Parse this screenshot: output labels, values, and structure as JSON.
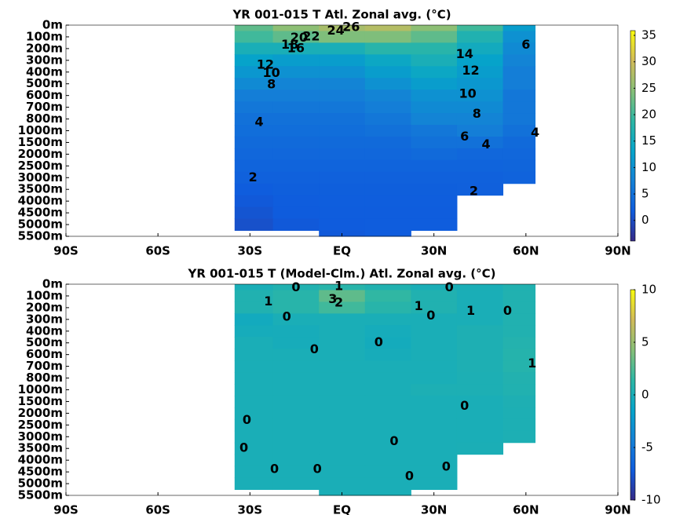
{
  "chart_data": [
    {
      "type": "contour",
      "title": "YR 001-015 T Atl. Zonal avg. (°C)",
      "xlim": [
        -90,
        90
      ],
      "xticks": [
        {
          "value": -90,
          "label": "90S"
        },
        {
          "value": -60,
          "label": "60S"
        },
        {
          "value": -30,
          "label": "30S"
        },
        {
          "value": 0,
          "label": "EQ"
        },
        {
          "value": 30,
          "label": "30N"
        },
        {
          "value": 60,
          "label": "60N"
        },
        {
          "value": 90,
          "label": "90N"
        }
      ],
      "yticks": [
        {
          "value": 0,
          "label": "0m"
        },
        {
          "value": 100,
          "label": "100m"
        },
        {
          "value": 200,
          "label": "200m"
        },
        {
          "value": 300,
          "label": "300m"
        },
        {
          "value": 400,
          "label": "400m"
        },
        {
          "value": 500,
          "label": "500m"
        },
        {
          "value": 600,
          "label": "600m"
        },
        {
          "value": 700,
          "label": "700m"
        },
        {
          "value": 800,
          "label": "800m"
        },
        {
          "value": 1000,
          "label": "1000m"
        },
        {
          "value": 1500,
          "label": "1500m"
        },
        {
          "value": 2000,
          "label": "2000m"
        },
        {
          "value": 2500,
          "label": "2500m"
        },
        {
          "value": 3000,
          "label": "3000m"
        },
        {
          "value": 3500,
          "label": "3500m"
        },
        {
          "value": 4000,
          "label": "4000m"
        },
        {
          "value": 4500,
          "label": "4500m"
        },
        {
          "value": 5000,
          "label": "5000m"
        },
        {
          "value": 5500,
          "label": "5500m"
        }
      ],
      "x": [
        -30,
        -15,
        0,
        15,
        30,
        45,
        60
      ],
      "field": [
        [
          22,
          25,
          27,
          28,
          25,
          20,
          12
        ],
        [
          20,
          22,
          24,
          24,
          22,
          17,
          10
        ],
        [
          16,
          16,
          16,
          18,
          18,
          15,
          9
        ],
        [
          13,
          12,
          12,
          14,
          16,
          13,
          8
        ],
        [
          11,
          10,
          10,
          12,
          14,
          12,
          7
        ],
        [
          9,
          8,
          8,
          10,
          12,
          11,
          7
        ],
        [
          7,
          7,
          7,
          8,
          10,
          10,
          6
        ],
        [
          6,
          6,
          6,
          7,
          9,
          9,
          6
        ],
        [
          5,
          5,
          5,
          6,
          8,
          8,
          6
        ],
        [
          4.5,
          4.5,
          4.5,
          5,
          6,
          7,
          5
        ],
        [
          4,
          4,
          4,
          4,
          5,
          5,
          4
        ],
        [
          3.5,
          3.5,
          3.5,
          3.5,
          4,
          3.5,
          3.5
        ],
        [
          3,
          3,
          3,
          3,
          3,
          3,
          3.2
        ],
        [
          2.5,
          2.5,
          2.5,
          2.5,
          2.5,
          2.5,
          2.8
        ],
        [
          2,
          2.2,
          2.3,
          2.3,
          2.3,
          2.4,
          null
        ],
        [
          1.5,
          2,
          2.1,
          2.1,
          2.1,
          null,
          null
        ],
        [
          1,
          1.8,
          2,
          2,
          2,
          null,
          null
        ],
        [
          0.5,
          1.5,
          1.8,
          1.9,
          1.9,
          null,
          null
        ],
        [
          null,
          null,
          1.5,
          1.8,
          null,
          null,
          null
        ]
      ],
      "clim": [
        -3.9,
        35.9
      ],
      "cticks": [
        0,
        5,
        10,
        15,
        20,
        25,
        30,
        35
      ],
      "colormap": [
        "#352a87",
        "#0f5cdd",
        "#1481d6",
        "#06a4ca",
        "#2eb7a4",
        "#87bf77",
        "#d1bb59",
        "#f9fb0e"
      ],
      "contour_labels": [
        {
          "value": 26,
          "lat": 3,
          "depth": 20
        },
        {
          "value": 24,
          "lat": -2,
          "depth": 50
        },
        {
          "value": 22,
          "lat": -10,
          "depth": 100
        },
        {
          "value": 20,
          "lat": -14,
          "depth": 110
        },
        {
          "value": 18,
          "lat": -17,
          "depth": 170
        },
        {
          "value": 16,
          "lat": -15,
          "depth": 200
        },
        {
          "value": 14,
          "lat": 40,
          "depth": 250
        },
        {
          "value": 12,
          "lat": -25,
          "depth": 340
        },
        {
          "value": 10,
          "lat": -23,
          "depth": 410
        },
        {
          "value": 8,
          "lat": -23,
          "depth": 510
        },
        {
          "value": 12,
          "lat": 42,
          "depth": 390
        },
        {
          "value": 10,
          "lat": 41,
          "depth": 590
        },
        {
          "value": 8,
          "lat": 44,
          "depth": 760
        },
        {
          "value": 6,
          "lat": 40,
          "depth": 1270
        },
        {
          "value": 4,
          "lat": -27,
          "depth": 860
        },
        {
          "value": 4,
          "lat": 47,
          "depth": 1600
        },
        {
          "value": 6,
          "lat": 60,
          "depth": 170
        },
        {
          "value": 4,
          "lat": 63,
          "depth": 1100
        },
        {
          "value": 2,
          "lat": -29,
          "depth": 3000
        },
        {
          "value": 2,
          "lat": 43,
          "depth": 3600
        }
      ]
    },
    {
      "type": "contour",
      "title": "YR 001-015 T (Model-Clm.) Atl. Zonal avg. (°C)",
      "xlim": [
        -90,
        90
      ],
      "xticks": [
        {
          "value": -90,
          "label": "90S"
        },
        {
          "value": -60,
          "label": "60S"
        },
        {
          "value": -30,
          "label": "30S"
        },
        {
          "value": 0,
          "label": "EQ"
        },
        {
          "value": 30,
          "label": "30N"
        },
        {
          "value": 60,
          "label": "60N"
        },
        {
          "value": 90,
          "label": "90N"
        }
      ],
      "yticks": [
        {
          "value": 0,
          "label": "0m"
        },
        {
          "value": 100,
          "label": "100m"
        },
        {
          "value": 200,
          "label": "200m"
        },
        {
          "value": 300,
          "label": "300m"
        },
        {
          "value": 400,
          "label": "400m"
        },
        {
          "value": 500,
          "label": "500m"
        },
        {
          "value": 600,
          "label": "600m"
        },
        {
          "value": 700,
          "label": "700m"
        },
        {
          "value": 800,
          "label": "800m"
        },
        {
          "value": 1000,
          "label": "1000m"
        },
        {
          "value": 1500,
          "label": "1500m"
        },
        {
          "value": 2000,
          "label": "2000m"
        },
        {
          "value": 2500,
          "label": "2500m"
        },
        {
          "value": 3000,
          "label": "3000m"
        },
        {
          "value": 3500,
          "label": "3500m"
        },
        {
          "value": 4000,
          "label": "4000m"
        },
        {
          "value": 4500,
          "label": "4500m"
        },
        {
          "value": 5000,
          "label": "5000m"
        },
        {
          "value": 5500,
          "label": "5500m"
        }
      ],
      "x": [
        -30,
        -15,
        0,
        15,
        30,
        45,
        60
      ],
      "field": [
        [
          0,
          0.5,
          1,
          0.5,
          0,
          0,
          0.5
        ],
        [
          0.5,
          1,
          3,
          1.5,
          0.5,
          0,
          0.5
        ],
        [
          0.5,
          1,
          2,
          1,
          0.5,
          0,
          0.5
        ],
        [
          -0.5,
          0,
          0,
          0,
          0,
          0,
          0.5
        ],
        [
          -0.3,
          -0.2,
          0,
          -0.3,
          0,
          0.3,
          0.5
        ],
        [
          0,
          -0.2,
          0,
          -0.4,
          0,
          0.3,
          0.7
        ],
        [
          0,
          0,
          0,
          -0.2,
          0,
          0.3,
          0.8
        ],
        [
          0,
          0,
          0,
          0,
          0,
          0.3,
          0.8
        ],
        [
          0,
          0,
          0,
          0,
          0,
          0.2,
          0.6
        ],
        [
          0,
          0,
          0,
          0,
          0.2,
          0.2,
          0.5
        ],
        [
          0,
          0,
          0,
          0,
          0,
          0,
          0.3
        ],
        [
          0,
          0,
          0,
          0,
          0,
          0,
          0.2
        ],
        [
          0,
          0,
          0,
          0,
          0,
          0,
          0.2
        ],
        [
          0,
          0,
          0,
          0,
          0,
          0,
          0.2
        ],
        [
          0,
          0,
          0,
          0,
          0,
          0.1,
          null
        ],
        [
          0,
          0,
          0,
          0,
          0,
          null,
          null
        ],
        [
          0,
          0,
          0,
          0,
          0,
          null,
          null
        ],
        [
          0,
          0,
          0,
          0,
          0,
          null,
          null
        ],
        [
          null,
          null,
          0,
          0,
          null,
          null,
          null
        ]
      ],
      "clim": [
        -10,
        10
      ],
      "cticks": [
        -10,
        -5,
        0,
        5,
        10
      ],
      "colormap": [
        "#352a87",
        "#0f5cdd",
        "#1481d6",
        "#06a4ca",
        "#2eb7a4",
        "#87bf77",
        "#d1bb59",
        "#f9fb0e"
      ],
      "contour_labels": [
        {
          "value": 0,
          "lat": -15,
          "depth": 30
        },
        {
          "value": 1,
          "lat": -1,
          "depth": 20
        },
        {
          "value": 1,
          "lat": -24,
          "depth": 150
        },
        {
          "value": 3,
          "lat": -3,
          "depth": 130
        },
        {
          "value": 2,
          "lat": -1,
          "depth": 160
        },
        {
          "value": 0,
          "lat": -18,
          "depth": 280
        },
        {
          "value": 1,
          "lat": 25,
          "depth": 190
        },
        {
          "value": 0,
          "lat": 29,
          "depth": 270
        },
        {
          "value": 0,
          "lat": 35,
          "depth": 30
        },
        {
          "value": 1,
          "lat": 42,
          "depth": 230
        },
        {
          "value": 0,
          "lat": 54,
          "depth": 230
        },
        {
          "value": 0,
          "lat": 12,
          "depth": 500
        },
        {
          "value": 0,
          "lat": -9,
          "depth": 560
        },
        {
          "value": 1,
          "lat": 62,
          "depth": 680
        },
        {
          "value": 0,
          "lat": 40,
          "depth": 1700
        },
        {
          "value": 0,
          "lat": -31,
          "depth": 2300
        },
        {
          "value": 0,
          "lat": 17,
          "depth": 3200
        },
        {
          "value": 0,
          "lat": -32,
          "depth": 3500
        },
        {
          "value": 0,
          "lat": -22,
          "depth": 4400
        },
        {
          "value": 0,
          "lat": -8,
          "depth": 4400
        },
        {
          "value": 0,
          "lat": 22,
          "depth": 4700
        },
        {
          "value": 0,
          "lat": 34,
          "depth": 4300
        }
      ]
    }
  ]
}
